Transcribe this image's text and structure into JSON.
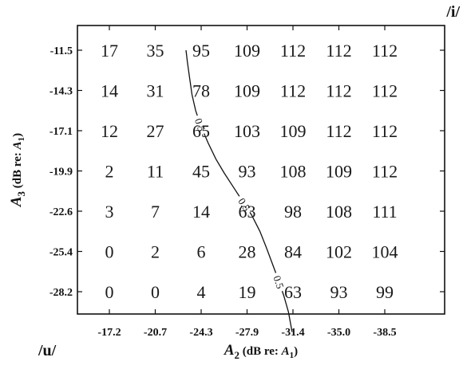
{
  "chart_data": {
    "type": "table",
    "corner_labels": {
      "top_right": "/i/",
      "bottom_left": "/u/"
    },
    "xlabel": {
      "main": "A",
      "sub": "2",
      "suffix_before": " (dB re: ",
      "ref": "A",
      "ref_sub": "1",
      "suffix_after": ")"
    },
    "ylabel": {
      "main": "A",
      "sub": "3",
      "suffix_before": " (dB re: ",
      "ref": "A",
      "ref_sub": "1",
      "suffix_after": ")"
    },
    "x_ticks": [
      "-17.2",
      "-20.7",
      "-24.3",
      "-27.9",
      "-31.4",
      "-35.0",
      "-38.5"
    ],
    "y_ticks": [
      "-11.5",
      "-14.3",
      "-17.1",
      "-19.9",
      "-22.6",
      "-25.4",
      "-28.2"
    ],
    "grid": false,
    "values": [
      [
        17,
        35,
        95,
        109,
        112,
        112,
        112
      ],
      [
        14,
        31,
        78,
        109,
        112,
        112,
        112
      ],
      [
        12,
        27,
        65,
        103,
        109,
        112,
        112
      ],
      [
        2,
        11,
        45,
        93,
        108,
        109,
        112
      ],
      [
        3,
        7,
        14,
        63,
        98,
        108,
        111
      ],
      [
        0,
        2,
        6,
        28,
        84,
        102,
        104
      ],
      [
        0,
        0,
        4,
        19,
        63,
        93,
        99
      ]
    ],
    "contour": {
      "level_label": "0.5",
      "points": [
        [
          1.67,
          0.0
        ],
        [
          1.7,
          0.3
        ],
        [
          1.75,
          0.7
        ],
        [
          1.8,
          1.1
        ],
        [
          1.88,
          1.5
        ],
        [
          2.0,
          1.9
        ],
        [
          2.15,
          2.3
        ],
        [
          2.32,
          2.7
        ],
        [
          2.5,
          3.05
        ],
        [
          2.7,
          3.4
        ],
        [
          2.9,
          3.75
        ],
        [
          3.1,
          4.1
        ],
        [
          3.28,
          4.5
        ],
        [
          3.42,
          4.9
        ],
        [
          3.55,
          5.3
        ],
        [
          3.68,
          5.7
        ],
        [
          3.8,
          6.1
        ],
        [
          3.9,
          6.5
        ],
        [
          3.98,
          7.0
        ]
      ],
      "label_positions": [
        0.25,
        0.55,
        0.83
      ]
    }
  }
}
